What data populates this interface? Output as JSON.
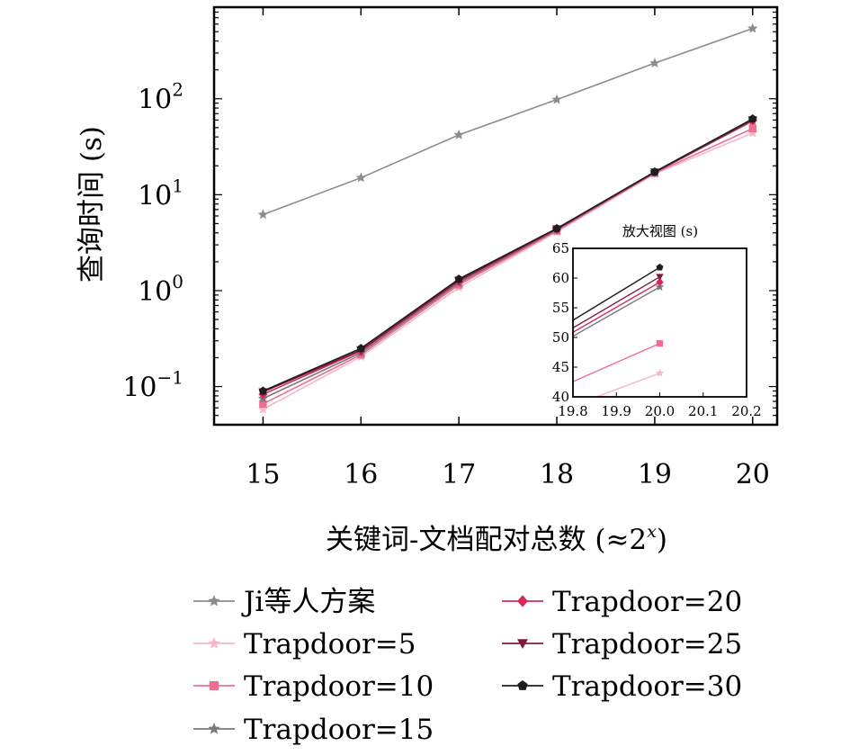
{
  "chart_data": [
    {
      "type": "line",
      "title": "",
      "xlabel": "关键词-文档配对总数 (≈2^x)",
      "xlabel_main": "关键词-文档配对总数 (≈2",
      "xlabel_sup": "x",
      "xlabel_close": ")",
      "ylabel": "查询时间 (s)",
      "y_scale": "log",
      "xlim": [
        14.5,
        20.25
      ],
      "ylim": [
        0.04,
        900
      ],
      "x_ticks": [
        15,
        16,
        17,
        18,
        19,
        20
      ],
      "x_tick_labels": [
        "15",
        "16",
        "17",
        "18",
        "19",
        "20"
      ],
      "y_ticks": [
        {
          "value": 0.1,
          "base": "10",
          "exp": "−1"
        },
        {
          "value": 1,
          "base": "10",
          "exp": "0"
        },
        {
          "value": 10,
          "base": "10",
          "exp": "1"
        },
        {
          "value": 100,
          "base": "10",
          "exp": "2"
        }
      ],
      "grid": false,
      "legend_position": "bottom",
      "x": [
        15,
        16,
        17,
        18,
        19,
        20
      ],
      "series": [
        {
          "name": "Ji等人方案",
          "color": "#8c8c8c",
          "marker": "star",
          "values": [
            6.2,
            15,
            42,
            98,
            235,
            540
          ]
        },
        {
          "name": "Trapdoor=5",
          "color": "#f4b8c8",
          "marker": "star",
          "values": [
            0.058,
            0.205,
            1.08,
            4.1,
            16.5,
            44
          ]
        },
        {
          "name": "Trapdoor=10",
          "color": "#ee6f92",
          "marker": "square",
          "values": [
            0.066,
            0.215,
            1.15,
            4.2,
            16.8,
            49
          ]
        },
        {
          "name": "Trapdoor=15",
          "color": "#7a7a7a",
          "marker": "star",
          "values": [
            0.075,
            0.225,
            1.2,
            4.3,
            17,
            58.5
          ]
        },
        {
          "name": "Trapdoor=20",
          "color": "#d8285a",
          "marker": "diamond",
          "values": [
            0.083,
            0.235,
            1.25,
            4.35,
            17.1,
            59.3
          ]
        },
        {
          "name": "Trapdoor=25",
          "color": "#7e1b3c",
          "marker": "triangle-down",
          "values": [
            0.088,
            0.24,
            1.28,
            4.4,
            17.2,
            60.2
          ]
        },
        {
          "name": "Trapdoor=30",
          "color": "#1e1e1e",
          "marker": "pentagon",
          "values": [
            0.09,
            0.25,
            1.32,
            4.45,
            17.3,
            61.8
          ]
        }
      ]
    },
    {
      "type": "line",
      "title": "放大视图 (s)",
      "xlim": [
        19.8,
        20.2
      ],
      "ylim": [
        40,
        65
      ],
      "x_ticks": [
        19.8,
        19.9,
        20.0,
        20.1,
        20.2
      ],
      "x_tick_labels": [
        "19.8",
        "19.9",
        "20.0",
        "20.1",
        "20.2"
      ],
      "y_ticks": [
        40,
        45,
        50,
        55,
        60,
        65
      ],
      "y_tick_labels": [
        "40",
        "45",
        "50",
        "55",
        "60",
        "65"
      ]
    }
  ]
}
